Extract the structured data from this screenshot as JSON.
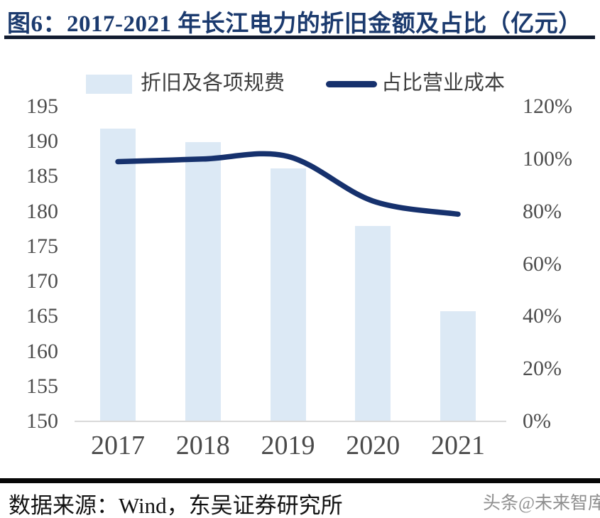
{
  "title": "图6：2017-2021 年长江电力的折旧金额及占比（亿元）",
  "legend": {
    "bar_label": "折旧及各项规费",
    "line_label": "占比营业成本"
  },
  "footer": {
    "source": "数据来源：Wind，东吴证券研究所",
    "watermark": "头条@未来智库"
  },
  "colors": {
    "title": "#1b3a6e",
    "bar_fill": "#dce9f5",
    "line": "#16316d",
    "axis_text": "#4d4d4d",
    "axis_line": "#d9d9d9",
    "top_rule": "#121c30",
    "footer_rule": "#070707"
  },
  "chart_data": {
    "type": "combo (bar + smoothed line, dual axis)",
    "title": "2017-2021 年长江电力的折旧金额及占比（亿元）",
    "categories": [
      "2017",
      "2018",
      "2019",
      "2020",
      "2021"
    ],
    "series": [
      {
        "name": "折旧及各项规费",
        "type": "bar",
        "axis": "left",
        "unit": "亿元",
        "values": [
          191.9,
          189.9,
          186.2,
          177.9,
          165.7
        ]
      },
      {
        "name": "占比营业成本",
        "type": "line",
        "axis": "right",
        "unit": "%",
        "values": [
          99,
          100,
          101,
          84,
          79
        ]
      }
    ],
    "left_axis": {
      "min": 150,
      "max": 195,
      "step": 5,
      "ticks": [
        "195",
        "190",
        "185",
        "180",
        "175",
        "170",
        "165",
        "160",
        "155",
        "150"
      ]
    },
    "right_axis": {
      "min": 0,
      "max": 120,
      "step": 20,
      "ticks": [
        "120%",
        "100%",
        "80%",
        "60%",
        "40%",
        "20%",
        "0%"
      ]
    },
    "legend_position": "top",
    "grid": false
  }
}
